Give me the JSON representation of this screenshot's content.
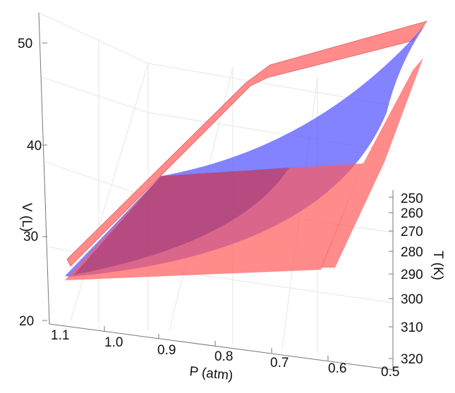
{
  "chart_data": {
    "type": "surface3d",
    "axes": {
      "x": {
        "label": "P (atm)",
        "ticks": [
          "1.1",
          "1.0",
          "0.9",
          "0.8",
          "0.7",
          "0.6",
          "0.5"
        ],
        "range": [
          1.1,
          0.5
        ]
      },
      "y": {
        "label": "T (K)",
        "ticks": [
          "250",
          "260",
          "270",
          "280",
          "290",
          "300",
          "310",
          "320"
        ],
        "range": [
          250,
          320
        ]
      },
      "z": {
        "label": "V (L)",
        "ticks": [
          "20",
          "30",
          "40",
          "50"
        ],
        "range": [
          20,
          50
        ]
      }
    },
    "series": [
      {
        "color": "#ff5a5a",
        "opacity": 0.7,
        "role": "red-surface"
      },
      {
        "color": "#5a5aff",
        "opacity": 0.75,
        "role": "blue-surface"
      }
    ],
    "grid": true
  }
}
